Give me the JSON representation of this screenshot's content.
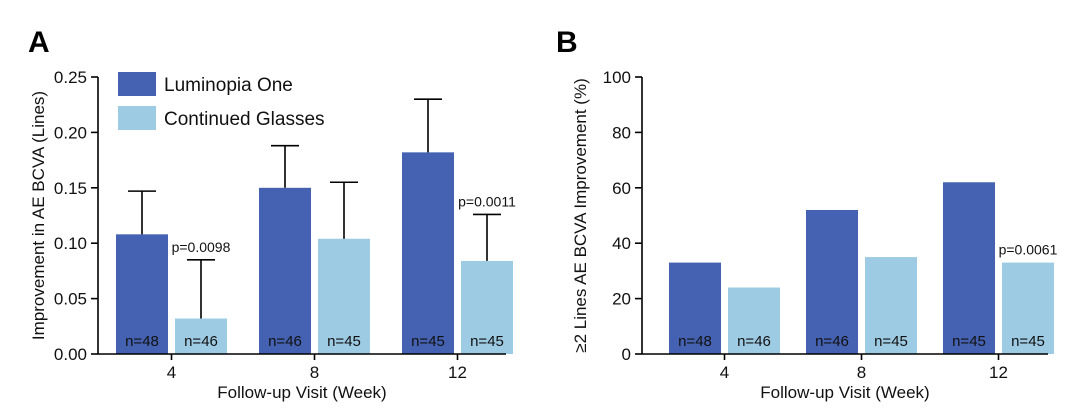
{
  "chart_data": [
    {
      "type": "bar",
      "panel_label": "A",
      "categories": [
        "4",
        "8",
        "12"
      ],
      "xlabel": "Follow-up Visit (Week)",
      "ylabel": "Improvement in AE BCVA (Lines)",
      "ylim": [
        0,
        0.25
      ],
      "yticks": [
        "0.00",
        "0.05",
        "0.10",
        "0.15",
        "0.20",
        "0.25"
      ],
      "legend_position": "top-left",
      "series": [
        {
          "name": "Luminopia One",
          "color": "#4462b1",
          "values": [
            0.108,
            0.15,
            0.182
          ],
          "error_upper": [
            0.147,
            0.188,
            0.23
          ],
          "n_labels": [
            "n=48",
            "n=46",
            "n=45"
          ]
        },
        {
          "name": "Continued Glasses",
          "color": "#9dcbe4",
          "values": [
            0.032,
            0.104,
            0.084
          ],
          "error_upper": [
            0.085,
            0.155,
            0.126
          ],
          "n_labels": [
            "n=46",
            "n=45",
            "n=45"
          ]
        }
      ],
      "annotations": [
        {
          "category": 0,
          "text": "p=0.0098"
        },
        {
          "category": 2,
          "text": "p=0.0011"
        }
      ]
    },
    {
      "type": "bar",
      "panel_label": "B",
      "categories": [
        "4",
        "8",
        "12"
      ],
      "xlabel": "Follow-up Visit (Week)",
      "ylabel": "≥2 Lines AE BCVA Improvement (%)",
      "ylim": [
        0,
        100
      ],
      "yticks": [
        "0",
        "20",
        "40",
        "60",
        "80",
        "100"
      ],
      "series": [
        {
          "name": "Luminopia One",
          "color": "#4462b1",
          "values": [
            33,
            52,
            62
          ],
          "n_labels": [
            "n=48",
            "n=46",
            "n=45"
          ]
        },
        {
          "name": "Continued Glasses",
          "color": "#9dcbe4",
          "values": [
            24,
            35,
            33
          ],
          "n_labels": [
            "n=46",
            "n=45",
            "n=45"
          ]
        }
      ],
      "annotations": [
        {
          "category": 2,
          "text": "p=0.0061"
        }
      ]
    }
  ]
}
